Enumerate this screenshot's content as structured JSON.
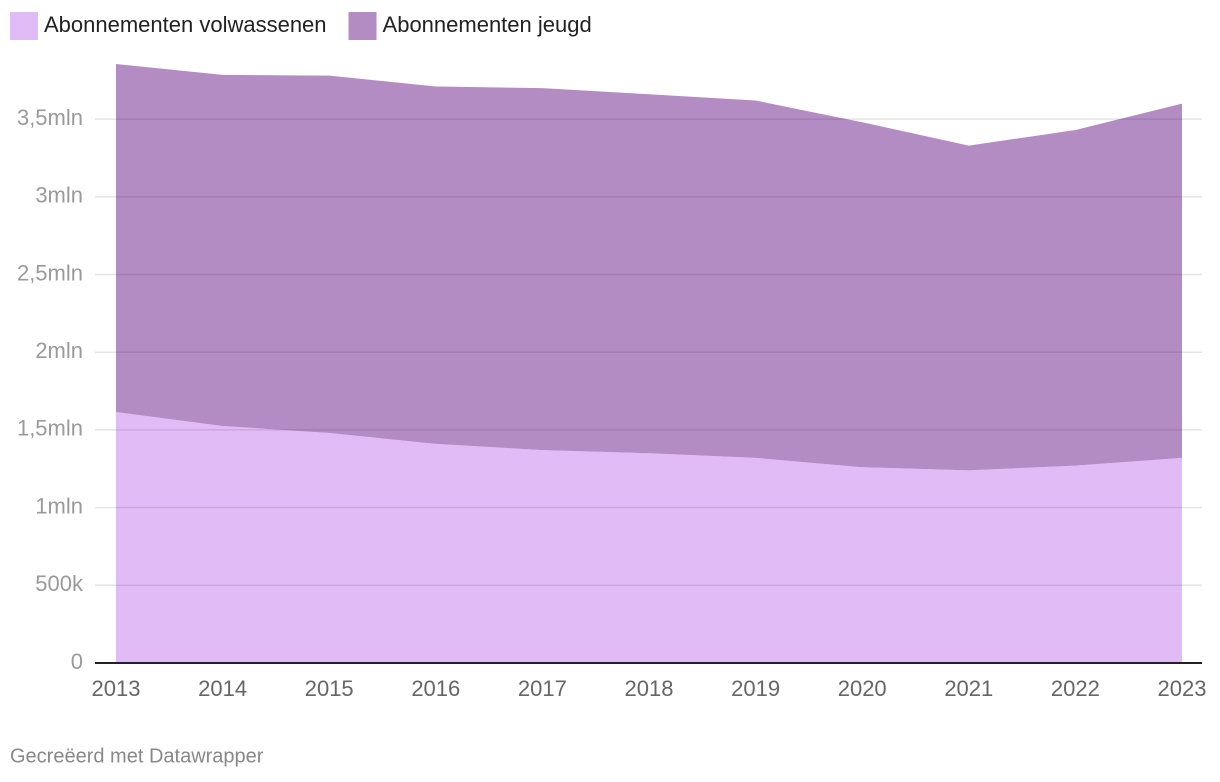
{
  "chart_data": {
    "type": "stacked-area",
    "categories": [
      "2013",
      "2014",
      "2015",
      "2016",
      "2017",
      "2018",
      "2019",
      "2020",
      "2021",
      "2022",
      "2023"
    ],
    "series": [
      {
        "name": "Abonnementen volwassenen",
        "color": "#e1bbf5",
        "values": [
          1615000,
          1525000,
          1480000,
          1410000,
          1370000,
          1350000,
          1320000,
          1260000,
          1240000,
          1270000,
          1320000
        ]
      },
      {
        "name": "Abonnementen jeugd",
        "color": "#b48cc4",
        "values": [
          2240000,
          2260000,
          2300000,
          2300000,
          2330000,
          2310000,
          2300000,
          2220000,
          2090000,
          2160000,
          2280000
        ]
      }
    ],
    "ylim": [
      0,
      3900000
    ],
    "yticks": [
      0,
      {
        "value": 500000,
        "label": "500k"
      },
      {
        "value": 1000000,
        "label": "1mln"
      },
      {
        "value": 1500000,
        "label": "1,5mln"
      },
      {
        "value": 2000000,
        "label": "2mln"
      },
      {
        "value": 2500000,
        "label": "2,5mln"
      },
      {
        "value": 3000000,
        "label": "3mln"
      },
      {
        "value": 3500000,
        "label": "3,5mln"
      }
    ],
    "grid": true,
    "legend": "top-left",
    "footer": "Gecreëerd met Datawrapper"
  }
}
